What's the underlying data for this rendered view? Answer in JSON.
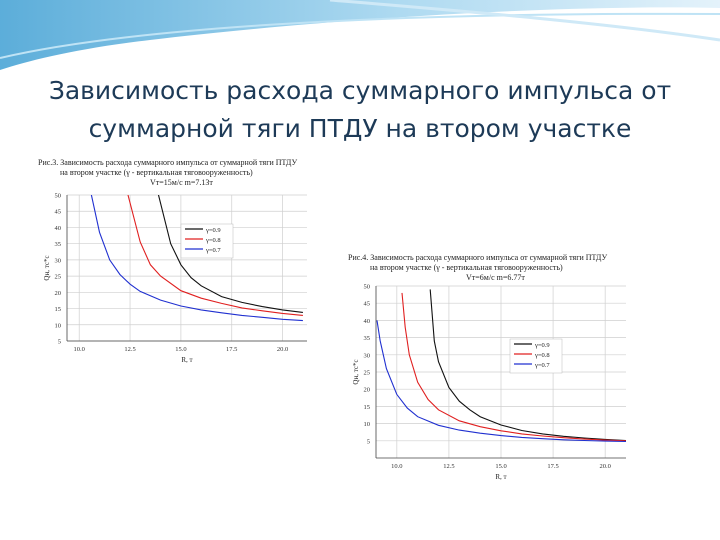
{
  "slide": {
    "title_line1": "Зависимость расхода суммарного импульса от",
    "title_line2": "суммарной тяги ПТДУ на втором участке"
  },
  "figure1": {
    "caption_line1": "Рис.3. Зависимость расхода суммарного импульса от суммарной тяги ПТДУ",
    "caption_line2": "на втором участке (γ - вертикальная тяговооруженность)",
    "caption_line3": "Vт=15м/с m=7.13т"
  },
  "figure2": {
    "caption_line1": "Рис.4. Зависимость расхода суммарного импульса от суммарной тяги ПТДУ",
    "caption_line2": "на втором участке (γ - вертикальная тяговооруженность)",
    "caption_line3": "Vт=6м/с m=6.77т"
  },
  "chart_data": [
    {
      "type": "line",
      "xlabel": "R, т",
      "ylabel": "Qн, тс*с",
      "xlim": [
        9.4,
        21.2
      ],
      "ylim": [
        5,
        50
      ],
      "xticks": [
        "10.0",
        "12.5",
        "15.0",
        "17.5",
        "20.0"
      ],
      "yticks": [
        "5",
        "10",
        "15",
        "20",
        "25",
        "30",
        "35",
        "40",
        "45",
        "50"
      ],
      "grid": true,
      "legend": "inside-top-right",
      "series": [
        {
          "name": "γ=0.9",
          "color": "#111111",
          "x": [
            13.9,
            14.5,
            15.0,
            15.5,
            16.0,
            17.0,
            18.0,
            19.0,
            20.0,
            21.0
          ],
          "y": [
            50,
            35,
            28.5,
            24.5,
            22,
            18.7,
            16.9,
            15.6,
            14.6,
            13.8
          ]
        },
        {
          "name": "γ=0.8",
          "color": "#e02020",
          "x": [
            12.4,
            13.0,
            13.5,
            14.0,
            15.0,
            16.0,
            17.0,
            18.0,
            19.0,
            20.0,
            21.0
          ],
          "y": [
            50,
            35.5,
            28.5,
            25,
            20.5,
            18.2,
            16.6,
            15.2,
            14.3,
            13.5,
            12.9
          ]
        },
        {
          "name": "γ=0.7",
          "color": "#2030d0",
          "x": [
            10.6,
            11.0,
            11.5,
            12.0,
            12.5,
            13.0,
            14.0,
            15.0,
            16.0,
            17.0,
            18.0,
            19.0,
            20.0,
            21.0
          ],
          "y": [
            50,
            38.5,
            30,
            25.5,
            22.5,
            20.3,
            17.6,
            15.8,
            14.6,
            13.7,
            12.9,
            12.3,
            11.7,
            11.3
          ]
        }
      ]
    },
    {
      "type": "line",
      "xlabel": "R, т",
      "ylabel": "Qн, тс*с",
      "xlim": [
        9.0,
        21.0
      ],
      "ylim": [
        0,
        50
      ],
      "xticks": [
        "10.0",
        "12.5",
        "15.0",
        "17.5",
        "20.0"
      ],
      "yticks": [
        "5",
        "10",
        "15",
        "20",
        "25",
        "30",
        "35",
        "40",
        "45",
        "50"
      ],
      "grid": true,
      "legend": "inside-right",
      "series": [
        {
          "name": "γ=0.9",
          "color": "#111111",
          "x": [
            11.6,
            11.8,
            12.0,
            12.5,
            13.0,
            13.5,
            14.0,
            15.0,
            16.0,
            17.0,
            18.0,
            19.0,
            20.0,
            21.0
          ],
          "y": [
            49,
            34,
            28,
            20.5,
            16.5,
            14,
            12,
            9.6,
            8.0,
            7.0,
            6.3,
            5.8,
            5.4,
            5.1
          ]
        },
        {
          "name": "γ=0.8",
          "color": "#e02020",
          "x": [
            10.25,
            10.4,
            10.6,
            11.0,
            11.5,
            12.0,
            13.0,
            14.0,
            15.0,
            16.0,
            17.0,
            18.0,
            19.0,
            20.0,
            21.0
          ],
          "y": [
            48,
            38,
            30,
            22,
            17,
            14,
            10.8,
            9.1,
            7.9,
            7.0,
            6.4,
            5.9,
            5.5,
            5.2,
            5.0
          ]
        },
        {
          "name": "γ=0.7",
          "color": "#2030d0",
          "x": [
            9.05,
            9.2,
            9.5,
            10.0,
            10.5,
            11.0,
            12.0,
            13.0,
            14.0,
            15.0,
            16.0,
            17.0,
            18.0,
            19.0,
            20.0,
            21.0
          ],
          "y": [
            40,
            34,
            26,
            18.5,
            14.5,
            12,
            9.5,
            8.1,
            7.2,
            6.5,
            6.0,
            5.6,
            5.3,
            5.1,
            4.9,
            4.8
          ]
        }
      ]
    }
  ]
}
